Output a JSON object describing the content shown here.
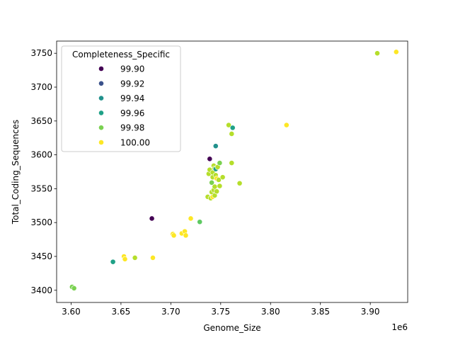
{
  "chart_data": {
    "type": "scatter",
    "title": "",
    "xlabel": "Genome_Size",
    "ylabel": "Total_Coding_Sequences",
    "x_offset_text": "1e6",
    "xlim": [
      3.5855,
      3.9375
    ],
    "ylim": [
      3382,
      3768
    ],
    "x_ticks": [
      3.6,
      3.65,
      3.7,
      3.75,
      3.8,
      3.85,
      3.9
    ],
    "x_tick_labels": [
      "3.60",
      "3.65",
      "3.70",
      "3.75",
      "3.80",
      "3.85",
      "3.90"
    ],
    "y_ticks": [
      3400,
      3450,
      3500,
      3550,
      3600,
      3650,
      3700,
      3750
    ],
    "y_tick_labels": [
      "3400",
      "3450",
      "3500",
      "3550",
      "3600",
      "3650",
      "3700",
      "3750"
    ],
    "grid": false,
    "legend": {
      "title": "Completeness_Specific",
      "placement": "upper-left",
      "entries": [
        {
          "label": "99.90",
          "color": "#440154"
        },
        {
          "label": "99.92",
          "color": "#3b528b"
        },
        {
          "label": "99.94",
          "color": "#21918c"
        },
        {
          "label": "99.96",
          "color": "#1fa187"
        },
        {
          "label": "99.98",
          "color": "#7ad151"
        },
        {
          "label": "100.00",
          "color": "#fde725"
        }
      ]
    },
    "points": [
      {
        "x": 3.601,
        "y": 3405,
        "color": "#7ad151"
      },
      {
        "x": 3.603,
        "y": 3403,
        "color": "#7ad151"
      },
      {
        "x": 3.642,
        "y": 3442,
        "color": "#1fa187"
      },
      {
        "x": 3.653,
        "y": 3450,
        "color": "#fde725"
      },
      {
        "x": 3.654,
        "y": 3446,
        "color": "#fde725"
      },
      {
        "x": 3.664,
        "y": 3448,
        "color": "#b5de2b"
      },
      {
        "x": 3.681,
        "y": 3506,
        "color": "#440154"
      },
      {
        "x": 3.682,
        "y": 3448,
        "color": "#fde725"
      },
      {
        "x": 3.702,
        "y": 3483,
        "color": "#fde725"
      },
      {
        "x": 3.703,
        "y": 3481,
        "color": "#fde725"
      },
      {
        "x": 3.711,
        "y": 3484,
        "color": "#fde725"
      },
      {
        "x": 3.714,
        "y": 3487,
        "color": "#fde725"
      },
      {
        "x": 3.715,
        "y": 3481,
        "color": "#fde725"
      },
      {
        "x": 3.72,
        "y": 3506,
        "color": "#fde725"
      },
      {
        "x": 3.729,
        "y": 3501,
        "color": "#5ec962"
      },
      {
        "x": 3.737,
        "y": 3538,
        "color": "#b5de2b"
      },
      {
        "x": 3.738,
        "y": 3572,
        "color": "#b5de2b"
      },
      {
        "x": 3.739,
        "y": 3578,
        "color": "#b5de2b"
      },
      {
        "x": 3.739,
        "y": 3594,
        "color": "#440154"
      },
      {
        "x": 3.74,
        "y": 3536,
        "color": "#b5de2b"
      },
      {
        "x": 3.741,
        "y": 3545,
        "color": "#b5de2b"
      },
      {
        "x": 3.741,
        "y": 3559,
        "color": "#7ad151"
      },
      {
        "x": 3.742,
        "y": 3538,
        "color": "#fde725"
      },
      {
        "x": 3.742,
        "y": 3567,
        "color": "#b5de2b"
      },
      {
        "x": 3.742,
        "y": 3574,
        "color": "#b5de2b"
      },
      {
        "x": 3.743,
        "y": 3584,
        "color": "#b5de2b"
      },
      {
        "x": 3.743,
        "y": 3548,
        "color": "#b5de2b"
      },
      {
        "x": 3.744,
        "y": 3540,
        "color": "#b5de2b"
      },
      {
        "x": 3.744,
        "y": 3553,
        "color": "#b5de2b"
      },
      {
        "x": 3.744,
        "y": 3580,
        "color": "#b5de2b"
      },
      {
        "x": 3.745,
        "y": 3613,
        "color": "#21918c"
      },
      {
        "x": 3.745,
        "y": 3579,
        "color": "#1fa187"
      },
      {
        "x": 3.745,
        "y": 3570,
        "color": "#b5de2b"
      },
      {
        "x": 3.746,
        "y": 3565,
        "color": "#fde725"
      },
      {
        "x": 3.746,
        "y": 3546,
        "color": "#b5de2b"
      },
      {
        "x": 3.747,
        "y": 3582,
        "color": "#b5de2b"
      },
      {
        "x": 3.748,
        "y": 3563,
        "color": "#b5de2b"
      },
      {
        "x": 3.749,
        "y": 3554,
        "color": "#b5de2b"
      },
      {
        "x": 3.749,
        "y": 3588,
        "color": "#7ad151"
      },
      {
        "x": 3.752,
        "y": 3567,
        "color": "#b5de2b"
      },
      {
        "x": 3.758,
        "y": 3644,
        "color": "#b5de2b"
      },
      {
        "x": 3.761,
        "y": 3631,
        "color": "#b5de2b"
      },
      {
        "x": 3.761,
        "y": 3588,
        "color": "#b5de2b"
      },
      {
        "x": 3.762,
        "y": 3640,
        "color": "#1fa187"
      },
      {
        "x": 3.769,
        "y": 3558,
        "color": "#b5de2b"
      },
      {
        "x": 3.816,
        "y": 3644,
        "color": "#fde725"
      },
      {
        "x": 3.907,
        "y": 3750,
        "color": "#b5de2b"
      },
      {
        "x": 3.926,
        "y": 3752,
        "color": "#fde725"
      }
    ]
  }
}
